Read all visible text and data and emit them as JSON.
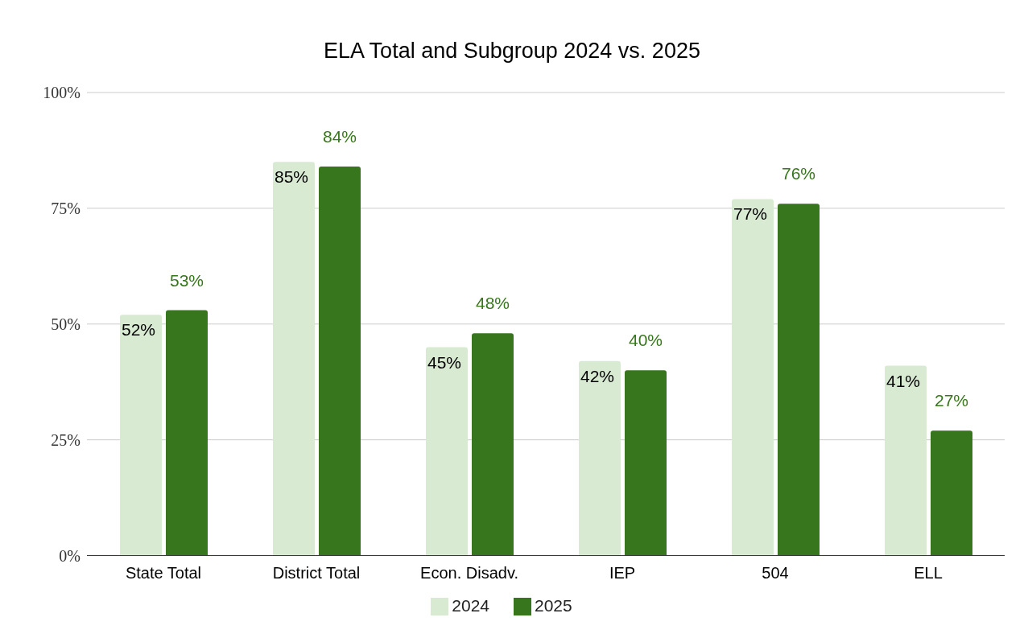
{
  "chart_data": {
    "type": "bar",
    "title": "ELA Total and Subgroup 2024 vs. 2025",
    "categories": [
      "State Total",
      "District Total",
      "Econ. Disadv.",
      "IEP",
      "504",
      "ELL"
    ],
    "series": [
      {
        "name": "2024",
        "color": "#d9ead3",
        "values": [
          52,
          85,
          45,
          42,
          77,
          41
        ],
        "value_labels": [
          "52%",
          "85%",
          "45%",
          "42%",
          "77%",
          "41%"
        ]
      },
      {
        "name": "2025",
        "color": "#38761d",
        "values": [
          53,
          84,
          48,
          40,
          76,
          27
        ],
        "value_labels": [
          "53%",
          "84%",
          "48%",
          "40%",
          "76%",
          "27%"
        ]
      }
    ],
    "ylim": [
      0,
      100
    ],
    "yticks": [
      {
        "value": 0,
        "label": "0%"
      },
      {
        "value": 25,
        "label": "25%"
      },
      {
        "value": 50,
        "label": "50%"
      },
      {
        "value": 75,
        "label": "75%"
      },
      {
        "value": 100,
        "label": "100%"
      }
    ],
    "grid": "y",
    "legend": "bottom"
  }
}
